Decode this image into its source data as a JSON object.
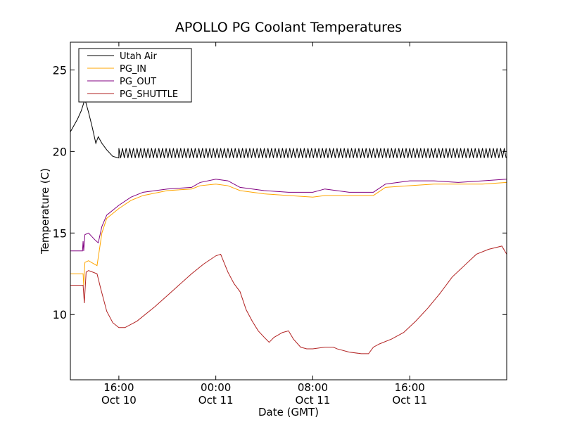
{
  "chart_data": {
    "type": "line",
    "title": "APOLLO PG Coolant Temperatures",
    "xlabel": "Date (GMT)",
    "ylabel": "Temperature (C)",
    "x_unit": "hours since Oct 10 12:00 GMT",
    "xlim": [
      0,
      36
    ],
    "ylim": [
      6,
      26.7
    ],
    "y_ticks": [
      10,
      15,
      20,
      25
    ],
    "x_ticks": [
      {
        "x": 4,
        "time": "16:00",
        "date": "Oct 10"
      },
      {
        "x": 12,
        "time": "00:00",
        "date": "Oct 11"
      },
      {
        "x": 20,
        "time": "08:00",
        "date": "Oct 11"
      },
      {
        "x": 28,
        "time": "16:00",
        "date": "Oct 11"
      }
    ],
    "legend_position": "top-left",
    "grid": false,
    "series": [
      {
        "name": "Utah Air",
        "color": "#000000",
        "points": [
          [
            0,
            21.2
          ],
          [
            0.3,
            21.6
          ],
          [
            0.6,
            22.0
          ],
          [
            0.9,
            22.5
          ],
          [
            1.2,
            23.2
          ],
          [
            1.5,
            22.4
          ],
          [
            1.8,
            21.5
          ],
          [
            2.1,
            20.5
          ],
          [
            2.3,
            20.9
          ],
          [
            2.6,
            20.5
          ],
          [
            3.0,
            20.1
          ],
          [
            3.5,
            19.7
          ],
          [
            4.0,
            19.6
          ]
        ],
        "oscillation": {
          "start": 4.0,
          "end": 36,
          "period": 0.3,
          "low": 19.6,
          "high": 20.2
        }
      },
      {
        "name": "PG_IN",
        "color": "#FFA500",
        "points": [
          [
            0,
            12.5
          ],
          [
            0.8,
            12.5
          ],
          [
            1.05,
            12.5
          ],
          [
            1.1,
            11.8
          ],
          [
            1.2,
            13.2
          ],
          [
            1.5,
            13.3
          ],
          [
            2.2,
            13.0
          ],
          [
            2.6,
            15.0
          ],
          [
            3.0,
            15.9
          ],
          [
            3.5,
            16.2
          ],
          [
            4.0,
            16.5
          ],
          [
            5.0,
            17.0
          ],
          [
            6.0,
            17.3
          ],
          [
            8.0,
            17.6
          ],
          [
            10.0,
            17.7
          ],
          [
            10.7,
            17.9
          ],
          [
            12.0,
            18.0
          ],
          [
            13.0,
            17.9
          ],
          [
            14.0,
            17.6
          ],
          [
            16.0,
            17.4
          ],
          [
            18.0,
            17.3
          ],
          [
            20.0,
            17.2
          ],
          [
            21.0,
            17.3
          ],
          [
            23.0,
            17.3
          ],
          [
            25.0,
            17.3
          ],
          [
            26.0,
            17.8
          ],
          [
            28.0,
            17.9
          ],
          [
            30.0,
            18.0
          ],
          [
            32.0,
            18.0
          ],
          [
            34.0,
            18.0
          ],
          [
            36.0,
            18.1
          ]
        ]
      },
      {
        "name": "PG_OUT",
        "color": "#800080",
        "points": [
          [
            0,
            13.9
          ],
          [
            1.0,
            13.9
          ],
          [
            1.05,
            14.5
          ],
          [
            1.1,
            13.9
          ],
          [
            1.2,
            14.9
          ],
          [
            1.5,
            15.0
          ],
          [
            2.0,
            14.6
          ],
          [
            2.3,
            14.4
          ],
          [
            2.6,
            15.4
          ],
          [
            3.0,
            16.1
          ],
          [
            3.5,
            16.4
          ],
          [
            4.0,
            16.7
          ],
          [
            5.0,
            17.2
          ],
          [
            6.0,
            17.5
          ],
          [
            8.0,
            17.7
          ],
          [
            10.0,
            17.8
          ],
          [
            10.7,
            18.1
          ],
          [
            12.0,
            18.3
          ],
          [
            13.0,
            18.2
          ],
          [
            14.0,
            17.8
          ],
          [
            16.0,
            17.6
          ],
          [
            18.0,
            17.5
          ],
          [
            20.0,
            17.5
          ],
          [
            21.0,
            17.7
          ],
          [
            23.0,
            17.5
          ],
          [
            25.0,
            17.5
          ],
          [
            26.0,
            18.0
          ],
          [
            28.0,
            18.2
          ],
          [
            30.0,
            18.2
          ],
          [
            32.0,
            18.1
          ],
          [
            34.0,
            18.2
          ],
          [
            36.0,
            18.3
          ]
        ]
      },
      {
        "name": "PG_SHUTTLE",
        "color": "#B22222",
        "points": [
          [
            0,
            11.8
          ],
          [
            1.05,
            11.8
          ],
          [
            1.15,
            10.7
          ],
          [
            1.3,
            12.6
          ],
          [
            1.5,
            12.7
          ],
          [
            2.2,
            12.5
          ],
          [
            2.5,
            11.6
          ],
          [
            3.0,
            10.2
          ],
          [
            3.5,
            9.5
          ],
          [
            4.0,
            9.2
          ],
          [
            4.5,
            9.2
          ],
          [
            5.5,
            9.6
          ],
          [
            7.0,
            10.5
          ],
          [
            8.5,
            11.5
          ],
          [
            10.0,
            12.5
          ],
          [
            11.0,
            13.1
          ],
          [
            12.0,
            13.6
          ],
          [
            12.4,
            13.7
          ],
          [
            13.0,
            12.6
          ],
          [
            13.5,
            11.9
          ],
          [
            14.0,
            11.4
          ],
          [
            14.5,
            10.3
          ],
          [
            15.0,
            9.6
          ],
          [
            15.5,
            9.0
          ],
          [
            16.0,
            8.6
          ],
          [
            16.4,
            8.3
          ],
          [
            16.8,
            8.6
          ],
          [
            17.5,
            8.9
          ],
          [
            18.0,
            9.0
          ],
          [
            18.4,
            8.5
          ],
          [
            19.0,
            8.0
          ],
          [
            19.5,
            7.9
          ],
          [
            20.0,
            7.9
          ],
          [
            21.0,
            8.0
          ],
          [
            21.7,
            8.0
          ],
          [
            22.0,
            7.9
          ],
          [
            23.0,
            7.7
          ],
          [
            24.0,
            7.6
          ],
          [
            24.6,
            7.6
          ],
          [
            25.0,
            8.0
          ],
          [
            25.5,
            8.2
          ],
          [
            26.5,
            8.5
          ],
          [
            27.5,
            8.9
          ],
          [
            28.5,
            9.6
          ],
          [
            29.5,
            10.4
          ],
          [
            30.5,
            11.3
          ],
          [
            31.5,
            12.3
          ],
          [
            32.5,
            13.0
          ],
          [
            33.5,
            13.7
          ],
          [
            34.5,
            14.0
          ],
          [
            35.6,
            14.2
          ],
          [
            36.0,
            13.7
          ]
        ]
      }
    ]
  }
}
